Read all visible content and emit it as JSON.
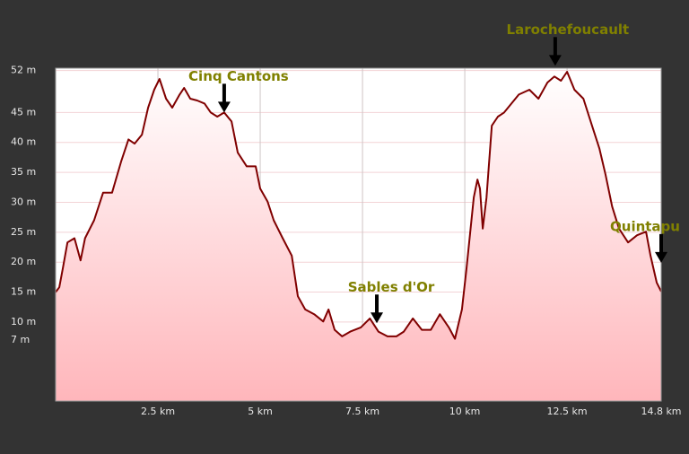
{
  "chart_data": {
    "type": "area-line",
    "x": [
      0,
      0.09,
      0.18,
      0.29,
      0.46,
      0.61,
      0.72,
      0.94,
      1.16,
      1.38,
      1.6,
      1.78,
      1.93,
      2.11,
      2.26,
      2.41,
      2.54,
      2.7,
      2.85,
      3.03,
      3.14,
      3.29,
      3.46,
      3.64,
      3.79,
      3.95,
      4.12,
      4.3,
      4.45,
      4.67,
      4.89,
      5,
      5.18,
      5.33,
      5.55,
      5.77,
      5.92,
      6.1,
      6.32,
      6.54,
      6.67,
      6.82,
      7,
      7.2,
      7.46,
      7.68,
      7.89,
      8.11,
      8.33,
      8.51,
      8.73,
      8.95,
      9.17,
      9.39,
      9.61,
      9.76,
      9.93,
      10.04,
      10.22,
      10.31,
      10.37,
      10.44,
      10.53,
      10.66,
      10.81,
      10.96,
      11.14,
      11.32,
      11.58,
      11.8,
      12.02,
      12.19,
      12.35,
      12.5,
      12.68,
      12.9,
      13.11,
      13.29,
      13.44,
      13.6,
      13.77,
      13.99,
      14.21,
      14.43,
      14.54,
      14.69,
      14.8
    ],
    "series": [
      {
        "color": "#800000",
        "fill": "#ffb6bb",
        "values": [
          15,
          15.8,
          19.1,
          23.3,
          24,
          20.3,
          24,
          27,
          31.6,
          31.6,
          36.8,
          40.5,
          39.8,
          41.3,
          45.8,
          48.8,
          50.6,
          47.3,
          45.8,
          48,
          49.1,
          47.3,
          47,
          46.5,
          45,
          44.3,
          45,
          43.5,
          38.3,
          36,
          36,
          32.3,
          30.1,
          27,
          24,
          21.1,
          14.3,
          12.1,
          11.3,
          10.1,
          12.1,
          8.7,
          7.6,
          8.4,
          9.1,
          10.6,
          8.4,
          7.6,
          7.6,
          8.4,
          10.6,
          8.7,
          8.7,
          11.3,
          9.1,
          7.2,
          12.1,
          18.8,
          30.8,
          33.8,
          32.3,
          25.6,
          30.8,
          42.8,
          44.3,
          45,
          46.5,
          48,
          48.8,
          47.3,
          50,
          51,
          50.3,
          51.8,
          48.8,
          47.3,
          42.8,
          39,
          34.6,
          29.3,
          25.6,
          23.3,
          24.5,
          25.1,
          21.1,
          16.6,
          15.1
        ]
      }
    ],
    "xlim": [
      0,
      14.8
    ],
    "ylim": [
      -3.2,
      52.4
    ],
    "xticks": [
      {
        "value": 2.5,
        "label": "2.5 km"
      },
      {
        "value": 5,
        "label": "5 km"
      },
      {
        "value": 7.5,
        "label": "7.5 km"
      },
      {
        "value": 10,
        "label": "10 km"
      },
      {
        "value": 12.5,
        "label": "12.5 km"
      },
      {
        "value": 14.8,
        "label": "14.8 km"
      }
    ],
    "yticks": [
      {
        "value": 7,
        "label": "7 m"
      },
      {
        "value": 10,
        "label": "10 m"
      },
      {
        "value": 15,
        "label": "15 m"
      },
      {
        "value": 20,
        "label": "20 m"
      },
      {
        "value": 25,
        "label": "25 m"
      },
      {
        "value": 30,
        "label": "30 m"
      },
      {
        "value": 35,
        "label": "35 m"
      },
      {
        "value": 40,
        "label": "40 m"
      },
      {
        "value": 45,
        "label": "45 m"
      },
      {
        "value": 52,
        "label": "52 m"
      }
    ],
    "grid": true,
    "annotations": [
      {
        "text": "Cinq Cantons",
        "x": 4.12,
        "y": 45
      },
      {
        "text": "Sables d'Or",
        "x": 7.85,
        "y": 9.8
      },
      {
        "text": "Larochefoucault",
        "x": 12.21,
        "y": 52.8
      },
      {
        "text": "Quintapu",
        "x": 14.8,
        "y": 19.9
      }
    ]
  }
}
